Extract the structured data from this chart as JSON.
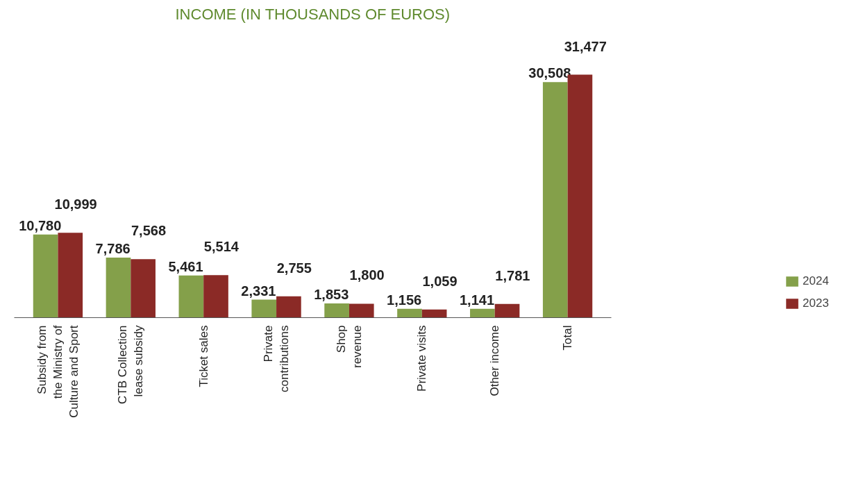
{
  "chart_data": {
    "type": "bar",
    "title": "INCOME (IN THOUSANDS OF EUROS)",
    "categories": [
      "Subsidy from\nthe Ministry of\nCulture and Sport",
      "CTB Collection\nlease subsidy",
      "Ticket sales",
      "Private\ncontributions",
      "Shop\nrevenue",
      "Private visits",
      "Other income",
      "Total"
    ],
    "series": [
      {
        "name": "2024",
        "color": "#84a04a",
        "values": [
          10780,
          7786,
          5461,
          2331,
          1853,
          1156,
          1141,
          30508
        ],
        "value_labels": [
          "10,780",
          "7,786",
          "5,461",
          "2,331",
          "1,853",
          "1,156",
          "1,141",
          "30,508"
        ]
      },
      {
        "name": "2023",
        "color": "#8b2a26",
        "values": [
          10999,
          7568,
          5514,
          2755,
          1800,
          1059,
          1781,
          31477
        ],
        "value_labels": [
          "10,999",
          "7,568",
          "5,514",
          "2,755",
          "1,800",
          "1,059",
          "1,781",
          "31,477"
        ]
      }
    ],
    "legend": "bottom right",
    "grid": false
  }
}
